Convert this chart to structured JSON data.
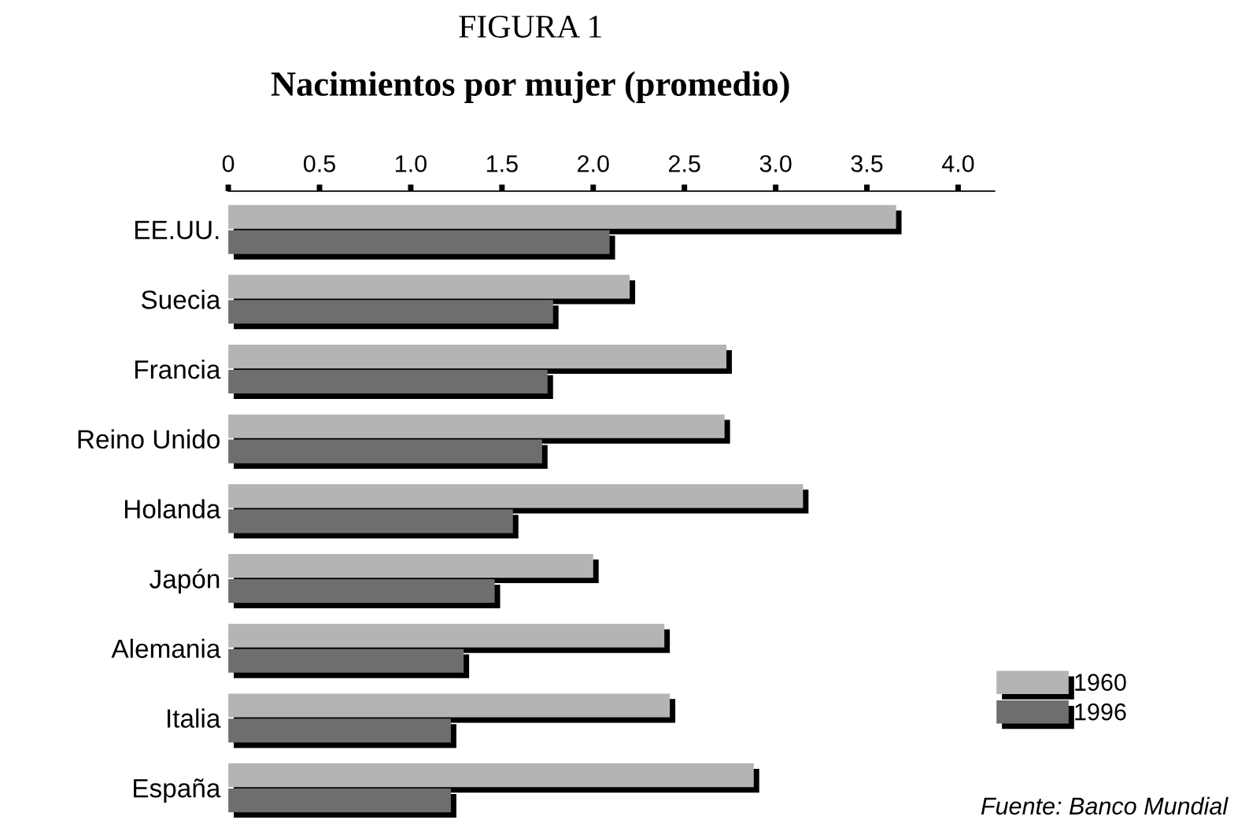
{
  "chart_data": {
    "type": "bar",
    "orientation": "horizontal",
    "title": "FIGURA 1",
    "subtitle": "Nacimientos por mujer (promedio)",
    "categories": [
      "EE.UU.",
      "Suecia",
      "Francia",
      "Reino Unido",
      "Holanda",
      "Japón",
      "Alemania",
      "Italia",
      "España"
    ],
    "series": [
      {
        "name": "1960",
        "color": "#b4b4b4",
        "values": [
          3.66,
          2.2,
          2.73,
          2.72,
          3.15,
          2.0,
          2.39,
          2.42,
          2.88
        ]
      },
      {
        "name": "1996",
        "color": "#6e6e6e",
        "values": [
          2.09,
          1.78,
          1.75,
          1.72,
          1.56,
          1.46,
          1.29,
          1.22,
          1.22
        ]
      }
    ],
    "xlim": [
      0,
      4.2
    ],
    "xticks": [
      0,
      0.5,
      {
        "value": 1.0,
        "label": "1.0"
      },
      1.5,
      {
        "value": 2.0,
        "label": "2.0"
      },
      2.5,
      {
        "value": 3.0,
        "label": "3.0"
      },
      3.5,
      {
        "value": 4.0,
        "label": "4.0"
      }
    ],
    "grid": false,
    "legend": "bottom right",
    "annotations": [
      "Fuente: Banco Mundial"
    ]
  }
}
